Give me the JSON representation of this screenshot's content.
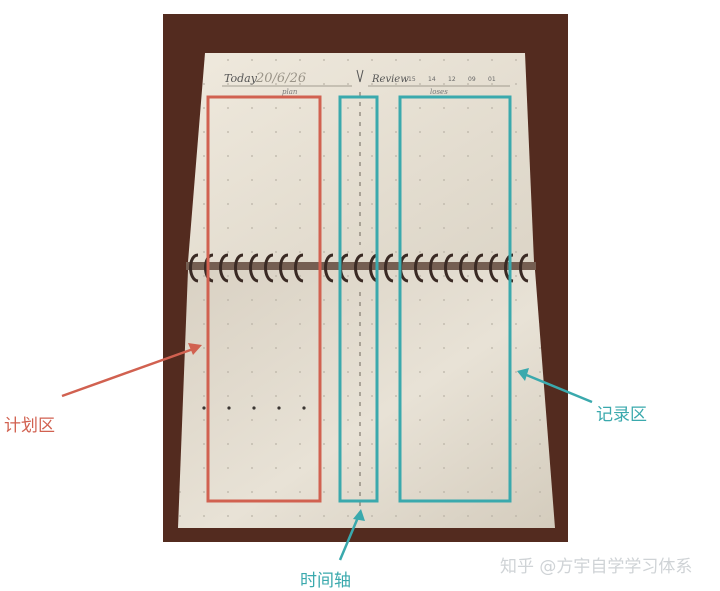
{
  "notebook": {
    "header": {
      "today_label": "Today",
      "date": "20/6/26",
      "plan_label": "plan",
      "review_label": "Review",
      "hours": [
        "15",
        "14",
        "12",
        "09",
        "01"
      ],
      "loses_label": "loses"
    }
  },
  "annotations": {
    "plan_area": "计划区",
    "record_area": "记录区",
    "time_axis": "时间轴"
  },
  "watermark": "知乎 @方宇自学学习体系",
  "colors": {
    "wood": "#5a2f22",
    "paper": "#ece6d9",
    "red": "#d16150",
    "teal": "#3aa9ad",
    "spiral": "#3a2a24"
  }
}
